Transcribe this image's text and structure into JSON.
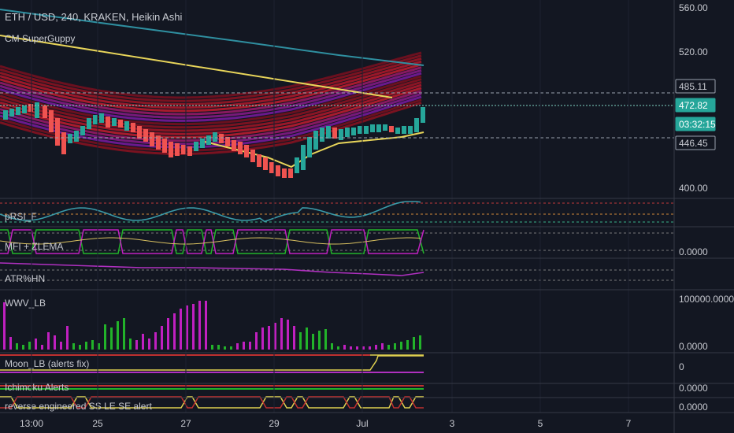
{
  "header": {
    "symbol_title": "ETH / USD, 240, KRAKEN, Heikin Ashi",
    "study_label": "CM SuperGuppy"
  },
  "price_axis": {
    "ticks": [
      "560.00",
      "520.00",
      "400.00"
    ],
    "badges": [
      {
        "text": "485.11",
        "bg": "#131722",
        "fg": "#c6c8cf",
        "border": "#9aa0ad"
      },
      {
        "text": "472.82",
        "bg": "#26a69a",
        "fg": "#ffffff",
        "border": "#26a69a"
      },
      {
        "text": "03:32:15",
        "bg": "#26a69a",
        "fg": "#ffffff",
        "border": "#26a69a"
      },
      {
        "text": "446.45",
        "bg": "#131722",
        "fg": "#c6c8cf",
        "border": "#9aa0ad"
      }
    ]
  },
  "panes": [
    {
      "label": "pRSI_F",
      "axis": ""
    },
    {
      "label": "MFI + ZLEMA",
      "axis": "0.0000"
    },
    {
      "label": "ATR%HN",
      "axis": ""
    },
    {
      "label": "WWV_LB",
      "axis": "100000.0000",
      "axis2": "0.0000"
    },
    {
      "label": "Moon_LB (alerts fix)",
      "axis": "0"
    },
    {
      "label": "Ichimoku Alerts",
      "axis": "0.0000"
    },
    {
      "label": "reverse engineered SS LE SE alert",
      "axis": "0.0000"
    }
  ],
  "time_axis": {
    "ticks": [
      "13:00",
      "25",
      "27",
      "29",
      "Jul",
      "3",
      "5",
      "7"
    ]
  },
  "colors": {
    "background": "#131722",
    "bull": "#26a69a",
    "bear": "#ef5350",
    "grid": "#1e222d"
  }
}
